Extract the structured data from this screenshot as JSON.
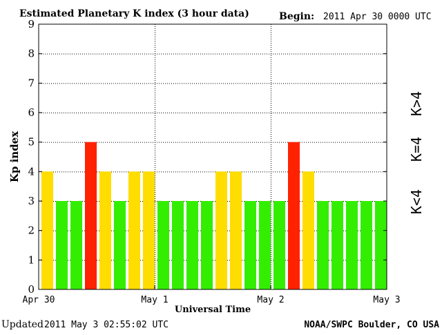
{
  "header": {
    "title": "Estimated Planetary K index (3 hour data)",
    "begin_label": "Begin:",
    "begin_value": "2011 Apr 30 0000 UTC"
  },
  "footer": {
    "updated_label": "Updated",
    "updated_value": "2011 May  3 02:55:02 UTC",
    "source": "NOAA/SWPC Boulder, CO USA"
  },
  "legend": {
    "high": "K>4",
    "equal": "K=4",
    "low": "K<4"
  },
  "colors": {
    "low": "#33ee00",
    "equal": "#ffdd00",
    "high": "#ff2200",
    "frame": "#000000",
    "background": "#ffffff"
  },
  "chart_data": {
    "type": "bar",
    "title": "Estimated Planetary K index (3 hour data)",
    "xlabel": "Universal Time",
    "ylabel": "Kp index",
    "ylim": [
      0,
      9
    ],
    "yticks": [
      0,
      1,
      2,
      3,
      4,
      5,
      6,
      7,
      8,
      9
    ],
    "grid": "dotted, at 4 and at day boundaries",
    "x_tick_labels": [
      "Apr 30",
      "May 1",
      "May 2",
      "May 3"
    ],
    "interval_hours": 3,
    "values": [
      4,
      3,
      3,
      5,
      4,
      3,
      4,
      4,
      3,
      3,
      3,
      3,
      4,
      4,
      3,
      3,
      3,
      5,
      4,
      3,
      3,
      3,
      3,
      3
    ]
  }
}
